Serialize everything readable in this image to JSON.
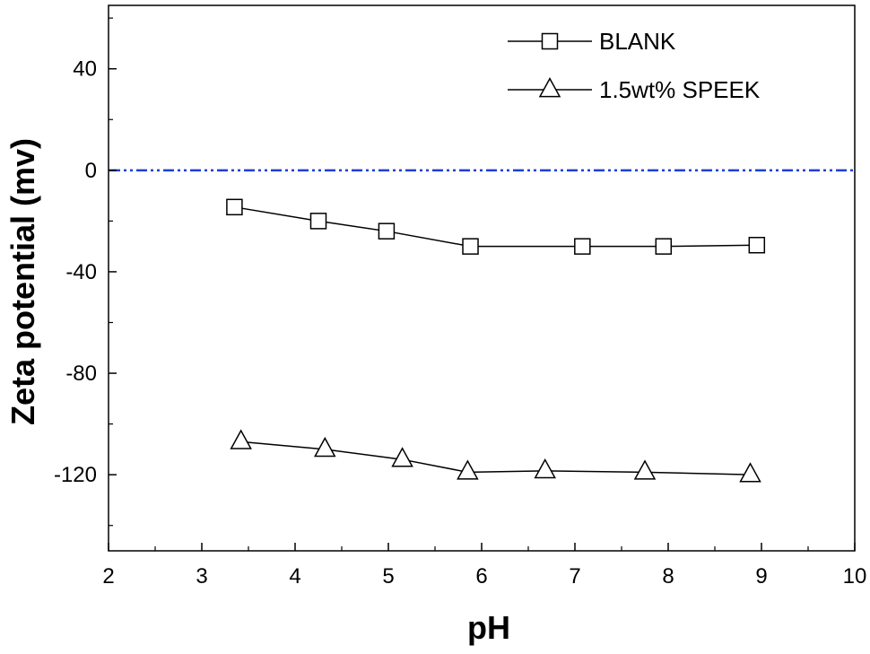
{
  "chart_data": {
    "type": "line",
    "title": "",
    "xlabel": "pH",
    "ylabel": "Zeta potential (mv)",
    "xlim": [
      2,
      10
    ],
    "ylim": [
      -150,
      65
    ],
    "xticks": [
      2,
      3,
      4,
      5,
      6,
      7,
      8,
      9,
      10
    ],
    "yticks": [
      -120,
      -80,
      -40,
      0,
      40
    ],
    "xtick_labels": [
      "2",
      "3",
      "4",
      "5",
      "6",
      "7",
      "8",
      "9",
      "10"
    ],
    "ytick_labels": [
      "-120",
      "-80",
      "-40",
      "0",
      "40"
    ],
    "grid": false,
    "legend_position": "top-right",
    "reference_line": {
      "y": 0,
      "style": "dash-dot-dot",
      "color": "#1f3fd6"
    },
    "series": [
      {
        "name": "BLANK",
        "marker": "square",
        "color": "#000000",
        "x": [
          3.35,
          4.25,
          4.98,
          5.88,
          7.08,
          7.95,
          8.95
        ],
        "y": [
          -14.5,
          -20,
          -24,
          -30,
          -30,
          -30,
          -29.5
        ]
      },
      {
        "name": "1.5wt% SPEEK",
        "marker": "triangle",
        "color": "#000000",
        "x": [
          3.42,
          4.32,
          5.15,
          5.85,
          6.68,
          7.75,
          8.88
        ],
        "y": [
          -107,
          -110,
          -114,
          -119,
          -118.5,
          -119,
          -120
        ]
      }
    ]
  }
}
